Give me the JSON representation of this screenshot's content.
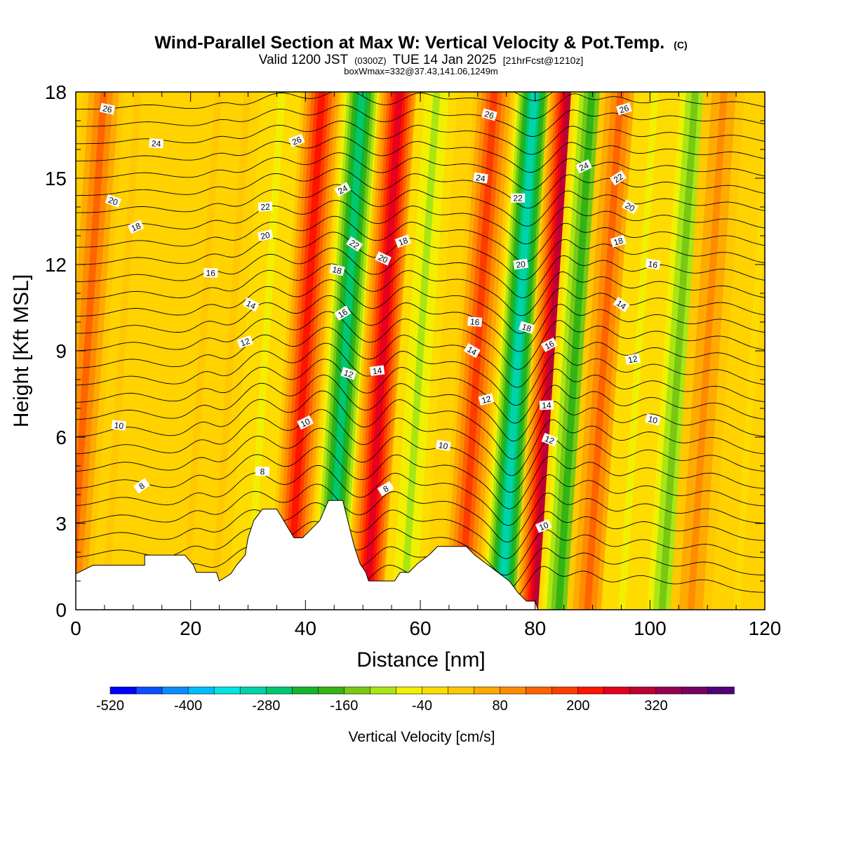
{
  "chart_data": {
    "type": "heatmap",
    "title": "Wind-Parallel Section at Max W: Vertical Velocity & Pot.Temp.",
    "title_mark": "(C)",
    "subtitle_main": "Valid 1200 JST",
    "subtitle_z": "(0300Z)",
    "subtitle_date": "TUE 14 Jan 2025",
    "subtitle_fcst": "[21hrFcst@1210z]",
    "subtitle2": "boxWmax=332@37.43,141.06,1249m",
    "xlabel": "Distance [nm]",
    "ylabel": "Height [Kft MSL]",
    "xlim": [
      0,
      120
    ],
    "ylim": [
      0,
      18
    ],
    "xticks": [
      "0",
      "20",
      "40",
      "60",
      "80",
      "100",
      "120"
    ],
    "yticks": [
      "0",
      "3",
      "6",
      "9",
      "12",
      "15",
      "18"
    ],
    "colorbar": {
      "label": "Vertical Velocity [cm/s]",
      "min": -520,
      "step": 40,
      "tick_labels": [
        "-520",
        "-400",
        "-280",
        "-160",
        "-40",
        "80",
        "200",
        "320"
      ],
      "colors": [
        "#0000ff",
        "#0a50ff",
        "#0a8cff",
        "#00beff",
        "#00e6e6",
        "#00d2aa",
        "#00c86e",
        "#14b432",
        "#32b414",
        "#78c814",
        "#aae614",
        "#f0f000",
        "#ffdc00",
        "#ffc800",
        "#ffaa00",
        "#ff8c00",
        "#ff6400",
        "#ff3c00",
        "#ff1400",
        "#e6001e",
        "#be0032",
        "#960050",
        "#780064",
        "#500078"
      ]
    },
    "velocity_bands": [
      {
        "x": 2,
        "w": 160
      },
      {
        "x": 8,
        "w": 40
      },
      {
        "x": 22,
        "w": 20
      },
      {
        "x": 27,
        "w": 40
      },
      {
        "x": 33,
        "w": -80
      },
      {
        "x": 40,
        "w": 240
      },
      {
        "x": 47,
        "w": -300
      },
      {
        "x": 53.5,
        "w": 300
      },
      {
        "x": 60,
        "w": -120
      },
      {
        "x": 70,
        "w": 200
      },
      {
        "x": 77,
        "w": -320
      },
      {
        "x": 83,
        "w": 340
      },
      {
        "x": 87,
        "w": -200
      },
      {
        "x": 92,
        "w": 180
      },
      {
        "x": 98,
        "w": -80
      },
      {
        "x": 105,
        "w": -160
      },
      {
        "x": 110,
        "w": 120
      },
      {
        "x": 118,
        "w": -60
      }
    ],
    "terrain": [
      {
        "x": 0,
        "h": 1.25
      },
      {
        "x": 3,
        "h": 1.55
      },
      {
        "x": 12,
        "h": 1.55
      },
      {
        "x": 12,
        "h": 1.9
      },
      {
        "x": 19,
        "h": 1.9
      },
      {
        "x": 20.5,
        "h": 1.55
      },
      {
        "x": 21,
        "h": 1.3
      },
      {
        "x": 24.5,
        "h": 1.3
      },
      {
        "x": 25,
        "h": 1.0
      },
      {
        "x": 27,
        "h": 1.25
      },
      {
        "x": 28,
        "h": 1.55
      },
      {
        "x": 29.5,
        "h": 1.9
      },
      {
        "x": 30,
        "h": 2.5
      },
      {
        "x": 31,
        "h": 3.1
      },
      {
        "x": 32.5,
        "h": 3.5
      },
      {
        "x": 35,
        "h": 3.5
      },
      {
        "x": 36.5,
        "h": 3.0
      },
      {
        "x": 38,
        "h": 2.5
      },
      {
        "x": 39.5,
        "h": 2.5
      },
      {
        "x": 41,
        "h": 2.8
      },
      {
        "x": 42.5,
        "h": 3.1
      },
      {
        "x": 44,
        "h": 3.8
      },
      {
        "x": 46.5,
        "h": 3.8
      },
      {
        "x": 47.5,
        "h": 3.0
      },
      {
        "x": 48.5,
        "h": 2.2
      },
      {
        "x": 49.5,
        "h": 1.6
      },
      {
        "x": 50.5,
        "h": 1.3
      },
      {
        "x": 51,
        "h": 1.0
      },
      {
        "x": 55.5,
        "h": 1.0
      },
      {
        "x": 56.5,
        "h": 1.3
      },
      {
        "x": 58,
        "h": 1.3
      },
      {
        "x": 59.5,
        "h": 1.6
      },
      {
        "x": 61.5,
        "h": 1.9
      },
      {
        "x": 63,
        "h": 2.2
      },
      {
        "x": 68,
        "h": 2.2
      },
      {
        "x": 69.5,
        "h": 1.9
      },
      {
        "x": 71.5,
        "h": 1.6
      },
      {
        "x": 73.5,
        "h": 1.3
      },
      {
        "x": 75.5,
        "h": 1.0
      },
      {
        "x": 77,
        "h": 0.6
      },
      {
        "x": 78.5,
        "h": 0.3
      },
      {
        "x": 80,
        "h": 0.3
      },
      {
        "x": 80.5,
        "h": 0
      }
    ],
    "theta_contours": [
      {
        "label": "8",
        "base": 1.2,
        "label_at": [
          11.5,
          4.3
        ]
      },
      {
        "label": "8",
        "base": 2.0,
        "label_at": [
          32.5,
          4.8
        ]
      },
      {
        "label": "8",
        "base": 2.8,
        "label_at": [
          54,
          4.2
        ]
      },
      {
        "label": "10",
        "base": 3.8,
        "label_at": [
          7.5,
          6.4
        ]
      },
      {
        "label": "10",
        "base": 4.6,
        "label_at": [
          40,
          6.5
        ]
      },
      {
        "label": "10",
        "base": 5.4,
        "label_at": [
          64,
          5.7
        ]
      },
      {
        "label": "10",
        "base": 1.6,
        "label_at": [
          81.5,
          2.9
        ]
      },
      {
        "label": "10",
        "base": 5.8,
        "label_at": [
          100.5,
          6.6
        ]
      },
      {
        "label": "12",
        "base": 6.8,
        "label_at": [
          29.5,
          9.3
        ]
      },
      {
        "label": "12",
        "base": 5.6,
        "label_at": [
          47.5,
          8.2
        ]
      },
      {
        "label": "12",
        "base": 7.0,
        "label_at": [
          71.5,
          7.3
        ]
      },
      {
        "label": "12",
        "base": 4.8,
        "label_at": [
          82.5,
          5.9
        ]
      },
      {
        "label": "12",
        "base": 8.0,
        "label_at": [
          97,
          8.7
        ]
      },
      {
        "label": "14",
        "base": 8.4,
        "label_at": [
          30.5,
          10.6
        ]
      },
      {
        "label": "14",
        "base": 7.6,
        "label_at": [
          52.5,
          8.3
        ]
      },
      {
        "label": "14",
        "base": 8.4,
        "label_at": [
          69,
          9.0
        ]
      },
      {
        "label": "14",
        "base": 6.2,
        "label_at": [
          82,
          7.1
        ]
      },
      {
        "label": "14",
        "base": 9.6,
        "label_at": [
          95,
          10.6
        ]
      },
      {
        "label": "16",
        "base": 9.8,
        "label_at": [
          23.5,
          11.7
        ]
      },
      {
        "label": "16",
        "base": 9.0,
        "label_at": [
          46.5,
          10.3
        ]
      },
      {
        "label": "16",
        "base": 9.6,
        "label_at": [
          69.5,
          10.0
        ]
      },
      {
        "label": "16",
        "base": 7.6,
        "label_at": [
          82.5,
          9.2
        ]
      },
      {
        "label": "16",
        "base": 11.0,
        "label_at": [
          100.5,
          12.0
        ]
      },
      {
        "label": "18",
        "base": 11.2,
        "label_at": [
          10.5,
          13.3
        ]
      },
      {
        "label": "18",
        "base": 10.4,
        "label_at": [
          45.5,
          11.8
        ]
      },
      {
        "label": "18",
        "base": 11.6,
        "label_at": [
          57,
          12.8
        ]
      },
      {
        "label": "18",
        "base": 8.8,
        "label_at": [
          78.5,
          9.8
        ]
      },
      {
        "label": "18",
        "base": 12.0,
        "label_at": [
          94.5,
          12.8
        ]
      },
      {
        "label": "20",
        "base": 12.6,
        "label_at": [
          6.5,
          14.2
        ]
      },
      {
        "label": "20",
        "base": 11.4,
        "label_at": [
          33,
          13.0
        ]
      },
      {
        "label": "20",
        "base": 10.8,
        "label_at": [
          53.5,
          12.2
        ]
      },
      {
        "label": "20",
        "base": 10.6,
        "label_at": [
          77.5,
          12.0
        ]
      },
      {
        "label": "20",
        "base": 13.2,
        "label_at": [
          96.5,
          14.0
        ]
      },
      {
        "label": "22",
        "base": 13.4,
        "label_at": [
          33,
          14.0
        ]
      },
      {
        "label": "22",
        "base": 11.8,
        "label_at": [
          48.5,
          12.7
        ]
      },
      {
        "label": "22",
        "base": 12.6,
        "label_at": [
          77,
          14.3
        ]
      },
      {
        "label": "22",
        "base": 14.2,
        "label_at": [
          94.5,
          15.0
        ]
      },
      {
        "label": "24",
        "base": 15.0,
        "label_at": [
          14,
          16.2
        ]
      },
      {
        "label": "24",
        "base": 13.8,
        "label_at": [
          46.5,
          14.6
        ]
      },
      {
        "label": "24",
        "base": 14.2,
        "label_at": [
          70.5,
          15.0
        ]
      },
      {
        "label": "24",
        "base": 14.6,
        "label_at": [
          88.5,
          15.4
        ]
      },
      {
        "label": "26",
        "base": 16.4,
        "label_at": [
          5.5,
          17.4
        ]
      },
      {
        "label": "26",
        "base": 15.0,
        "label_at": [
          38.5,
          16.3
        ]
      },
      {
        "label": "26",
        "base": 16.2,
        "label_at": [
          72,
          17.2
        ]
      },
      {
        "label": "26",
        "base": 16.6,
        "label_at": [
          95.5,
          17.4
        ]
      }
    ]
  }
}
